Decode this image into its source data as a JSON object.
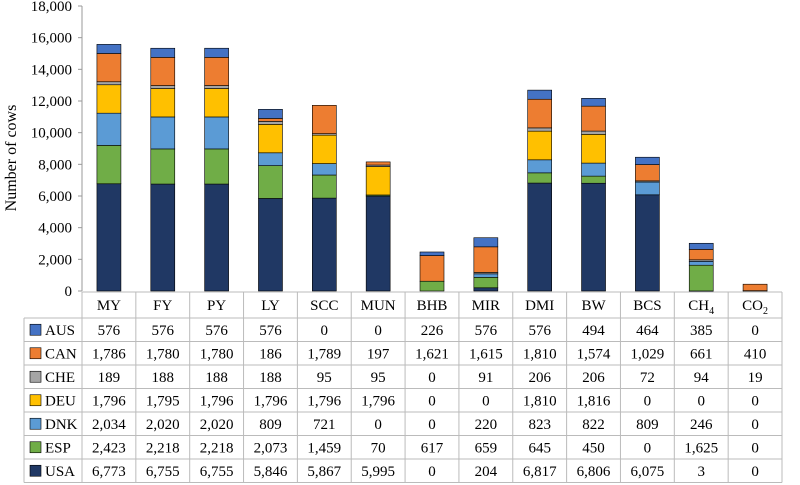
{
  "chart_data": {
    "type": "stacked_bar_with_table",
    "ylabel": "Number of cows",
    "ylim": [
      0,
      18000
    ],
    "yticks": [
      "0",
      "2,000",
      "4,000",
      "6,000",
      "8,000",
      "10,000",
      "12,000",
      "14,000",
      "16,000",
      "18,000"
    ],
    "categories": [
      "MY",
      "FY",
      "PY",
      "LY",
      "SCC",
      "MUN",
      "BHB",
      "MIR",
      "DMI",
      "BW",
      "BCS",
      "CH4",
      "CO2"
    ],
    "category_labels": [
      {
        "base": "MY",
        "sub": ""
      },
      {
        "base": "FY",
        "sub": ""
      },
      {
        "base": "PY",
        "sub": ""
      },
      {
        "base": "LY",
        "sub": ""
      },
      {
        "base": "SCC",
        "sub": ""
      },
      {
        "base": "MUN",
        "sub": ""
      },
      {
        "base": "BHB",
        "sub": ""
      },
      {
        "base": "MIR",
        "sub": ""
      },
      {
        "base": "DMI",
        "sub": ""
      },
      {
        "base": "BW",
        "sub": ""
      },
      {
        "base": "BCS",
        "sub": ""
      },
      {
        "base": "CH",
        "sub": "4"
      },
      {
        "base": "CO",
        "sub": "2"
      }
    ],
    "series": [
      {
        "name": "USA",
        "color": "#203864",
        "values": [
          6773,
          6755,
          6755,
          5846,
          5867,
          5995,
          0,
          204,
          6817,
          6806,
          6075,
          3,
          0
        ],
        "labels": [
          "6,773",
          "6,755",
          "6,755",
          "5,846",
          "5,867",
          "5,995",
          "0",
          "204",
          "6,817",
          "6,806",
          "6,075",
          "3",
          "0"
        ]
      },
      {
        "name": "ESP",
        "color": "#70AD47",
        "values": [
          2423,
          2218,
          2218,
          2073,
          1459,
          70,
          617,
          659,
          645,
          450,
          0,
          1625,
          0
        ],
        "labels": [
          "2,423",
          "2,218",
          "2,218",
          "2,073",
          "1,459",
          "70",
          "617",
          "659",
          "645",
          "450",
          "0",
          "1,625",
          "0"
        ]
      },
      {
        "name": "DNK",
        "color": "#5B9BD5",
        "values": [
          2034,
          2020,
          2020,
          809,
          721,
          0,
          0,
          220,
          823,
          822,
          809,
          246,
          0
        ],
        "labels": [
          "2,034",
          "2,020",
          "2,020",
          "809",
          "721",
          "0",
          "0",
          "220",
          "823",
          "822",
          "809",
          "246",
          "0"
        ]
      },
      {
        "name": "DEU",
        "color": "#FFC000",
        "values": [
          1796,
          1795,
          1796,
          1796,
          1796,
          1796,
          0,
          0,
          1810,
          1816,
          0,
          0,
          0
        ],
        "labels": [
          "1,796",
          "1,795",
          "1,796",
          "1,796",
          "1,796",
          "1,796",
          "0",
          "0",
          "1,810",
          "1,816",
          "0",
          "0",
          "0"
        ]
      },
      {
        "name": "CHE",
        "color": "#A5A5A5",
        "values": [
          189,
          188,
          188,
          188,
          95,
          95,
          0,
          91,
          206,
          206,
          72,
          94,
          19
        ],
        "labels": [
          "189",
          "188",
          "188",
          "188",
          "95",
          "95",
          "0",
          "91",
          "206",
          "206",
          "72",
          "94",
          "19"
        ]
      },
      {
        "name": "CAN",
        "color": "#ED7D31",
        "values": [
          1786,
          1780,
          1780,
          186,
          1789,
          197,
          1621,
          1615,
          1810,
          1574,
          1029,
          661,
          410
        ],
        "labels": [
          "1,786",
          "1,780",
          "1,780",
          "186",
          "1,789",
          "197",
          "1,621",
          "1,615",
          "1,810",
          "1,574",
          "1,029",
          "661",
          "410"
        ]
      },
      {
        "name": "AUS",
        "color": "#4472C4",
        "values": [
          576,
          576,
          576,
          576,
          0,
          0,
          226,
          576,
          576,
          494,
          464,
          385,
          0
        ],
        "labels": [
          "576",
          "576",
          "576",
          "576",
          "0",
          "0",
          "226",
          "576",
          "576",
          "494",
          "464",
          "385",
          "0"
        ]
      }
    ],
    "table_row_order": [
      "AUS",
      "CAN",
      "CHE",
      "DEU",
      "DNK",
      "ESP",
      "USA"
    ],
    "grid": false,
    "legend": "data table rows"
  }
}
